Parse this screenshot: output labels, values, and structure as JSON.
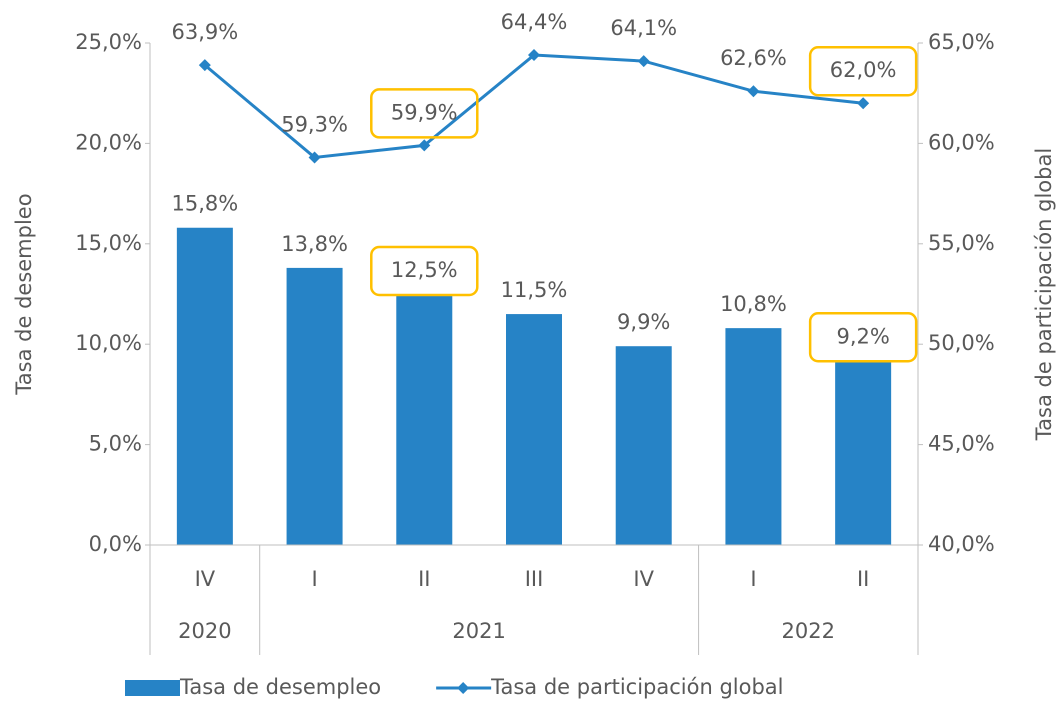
{
  "chart_data": {
    "type": "bar_line",
    "categories": [
      "IV",
      "I",
      "II",
      "III",
      "IV",
      "I",
      "II"
    ],
    "category_groups": [
      {
        "label": "2020",
        "count": 1
      },
      {
        "label": "2021",
        "count": 4
      },
      {
        "label": "2022",
        "count": 2
      }
    ],
    "series": [
      {
        "name": "Tasa de desempleo",
        "type": "bar",
        "color": "#2683c6",
        "axis": "y",
        "values": [
          15.8,
          13.8,
          12.5,
          11.5,
          9.9,
          10.8,
          9.2
        ],
        "value_labels": [
          "15,8%",
          "13,8%",
          "12,5%",
          "11,5%",
          "9,9%",
          "10,8%",
          "9,2%"
        ]
      },
      {
        "name": "Tasa de participación global",
        "type": "line",
        "color": "#2683c6",
        "axis": "y2",
        "values": [
          63.9,
          59.3,
          59.9,
          64.4,
          64.1,
          62.6,
          62.0
        ],
        "value_labels": [
          "63,9%",
          "59,3%",
          "59,9%",
          "64,4%",
          "64,1%",
          "62,6%",
          "62,0%"
        ]
      }
    ],
    "ylabel": "Tasa de desempleo",
    "y2label": "Tasa de participación global",
    "ylim": [
      0,
      25
    ],
    "yticks": [
      {
        "value": 0,
        "label": "0,0%"
      },
      {
        "value": 5,
        "label": "5,0%"
      },
      {
        "value": 10,
        "label": "10,0%"
      },
      {
        "value": 15,
        "label": "15,0%"
      },
      {
        "value": 20,
        "label": "20,0%"
      },
      {
        "value": 25,
        "label": "25,0%"
      }
    ],
    "y2lim": [
      40,
      65
    ],
    "y2ticks": [
      {
        "value": 40,
        "label": "40,0%"
      },
      {
        "value": 45,
        "label": "45,0%"
      },
      {
        "value": 50,
        "label": "50,0%"
      },
      {
        "value": 55,
        "label": "55,0%"
      },
      {
        "value": 60,
        "label": "60,0%"
      },
      {
        "value": 65,
        "label": "65,0%"
      }
    ],
    "highlight_indices": [
      2,
      6
    ],
    "highlight_color": "#ffc000",
    "legend": "bottom"
  }
}
